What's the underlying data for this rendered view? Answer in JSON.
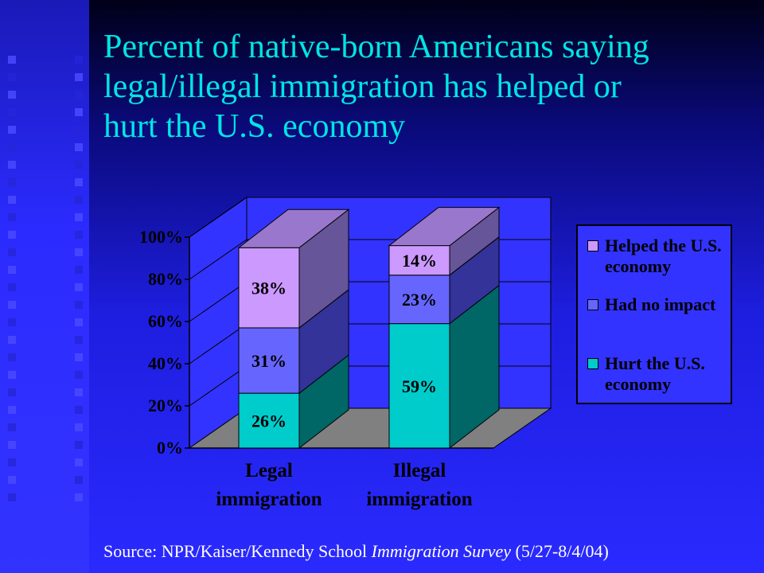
{
  "title": {
    "line1": "Percent of native-born Americans saying",
    "line2": "legal/illegal immigration has helped or",
    "line3": "hurt the U.S. economy"
  },
  "source": {
    "prefix": "Source: NPR/Kaiser/Kennedy School ",
    "italic": "Immigration Survey",
    "suffix": " (5/27-8/4/04)"
  },
  "colors": {
    "helped": "#cc99ff",
    "no_impact": "#6666ff",
    "hurt": "#00cccc"
  },
  "chart_data": {
    "type": "bar",
    "stacked": true,
    "three_d": true,
    "categories": [
      "Legal immigration",
      "Illegal immigration"
    ],
    "category_lines": [
      [
        "Legal",
        "immigration"
      ],
      [
        "Illegal",
        "immigration"
      ]
    ],
    "series": [
      {
        "name": "Hurt the U.S. economy",
        "values": [
          26,
          59
        ]
      },
      {
        "name": "Had no impact",
        "values": [
          31,
          23
        ]
      },
      {
        "name": "Helped the U.S. economy",
        "values": [
          38,
          14
        ]
      }
    ],
    "data_labels": [
      [
        "26%",
        "59%"
      ],
      [
        "31%",
        "23%"
      ],
      [
        "38%",
        "14%"
      ]
    ],
    "yticks": [
      "0%",
      "20%",
      "40%",
      "60%",
      "80%",
      "100%"
    ],
    "ylim": [
      0,
      100
    ],
    "grid": true,
    "legend_position": "right"
  },
  "legend": {
    "items": [
      {
        "label": "Helped the U.S. economy"
      },
      {
        "label": "Had no impact"
      },
      {
        "label": "Hurt the U.S. economy"
      }
    ]
  }
}
